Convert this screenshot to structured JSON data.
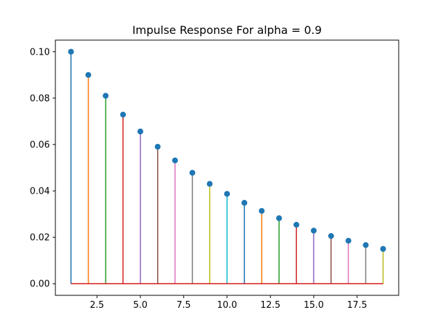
{
  "chart_data": {
    "type": "stem",
    "title": "Impulse Response For alpha = 0.9",
    "xlabel": "",
    "ylabel": "",
    "xlim": [
      0.1,
      19.9
    ],
    "ylim": [
      -0.005,
      0.105
    ],
    "x_ticks": [
      2.5,
      5.0,
      7.5,
      10.0,
      12.5,
      15.0,
      17.5
    ],
    "x_tick_labels": [
      "2.5",
      "5.0",
      "7.5",
      "10.0",
      "12.5",
      "15.0",
      "17.5"
    ],
    "y_ticks": [
      0.0,
      0.02,
      0.04,
      0.06,
      0.08,
      0.1
    ],
    "y_tick_labels": [
      "0.00",
      "0.02",
      "0.04",
      "0.06",
      "0.08",
      "0.10"
    ],
    "grid": false,
    "legend": "none",
    "x": [
      1,
      2,
      3,
      4,
      5,
      6,
      7,
      8,
      9,
      10,
      11,
      12,
      13,
      14,
      15,
      16,
      17,
      18,
      19
    ],
    "y": [
      0.1,
      0.09,
      0.081,
      0.0729,
      0.06561,
      0.059049,
      0.0531441,
      0.04782969,
      0.04304672,
      0.03874205,
      0.03486784,
      0.03138106,
      0.02824295,
      0.02541866,
      0.02287679,
      0.02058911,
      0.0185302,
      0.01667718,
      0.01500946
    ],
    "marker_color": "#1f77b4",
    "stem_colors": [
      "#1f77b4",
      "#ff7f0e",
      "#2ca02c",
      "#d62728",
      "#9467bd",
      "#8c564b",
      "#e377c2",
      "#7f7f7f",
      "#bcbd22",
      "#17becf"
    ],
    "baseline_color": "#d62728"
  }
}
